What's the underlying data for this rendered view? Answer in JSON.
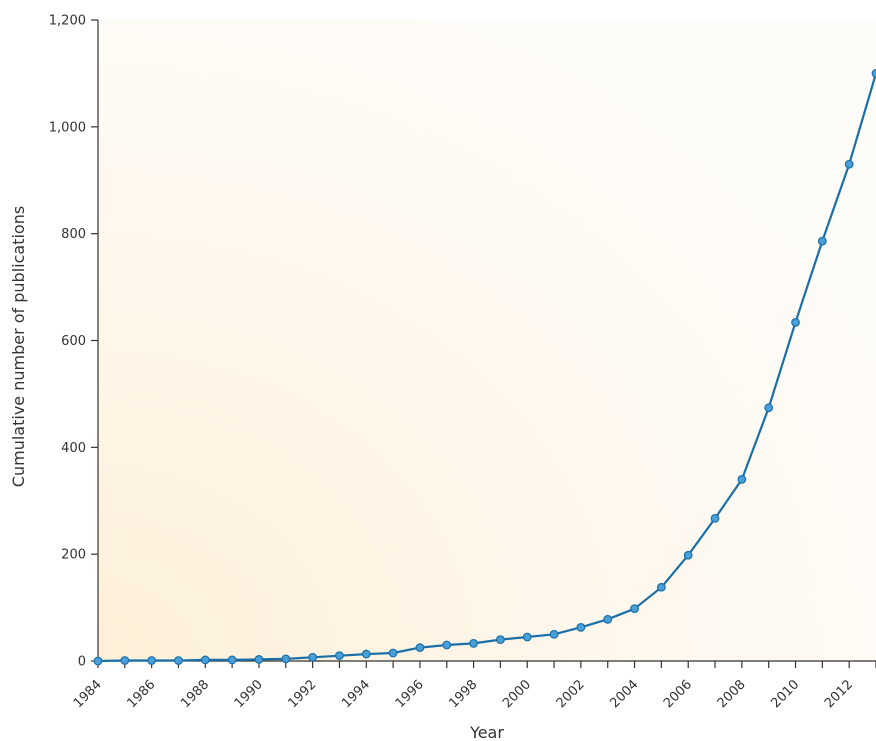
{
  "chart_data": {
    "type": "line",
    "title": "",
    "xlabel": "Year",
    "ylabel": "Cumulative number of publications",
    "xlim": [
      1984,
      2013
    ],
    "ylim": [
      0,
      1200
    ],
    "y_ticks": [
      {
        "value": 0,
        "label": "0"
      },
      {
        "value": 200,
        "label": "200"
      },
      {
        "value": 400,
        "label": "400"
      },
      {
        "value": 600,
        "label": "600"
      },
      {
        "value": 800,
        "label": "800"
      },
      {
        "value": 1000,
        "label": "1,000"
      },
      {
        "value": 1200,
        "label": "1,200"
      }
    ],
    "x_ticks": [
      {
        "value": 1984,
        "label": "1984"
      },
      {
        "value": 1986,
        "label": "1986"
      },
      {
        "value": 1988,
        "label": "1988"
      },
      {
        "value": 1990,
        "label": "1990"
      },
      {
        "value": 1992,
        "label": "1992"
      },
      {
        "value": 1994,
        "label": "1994"
      },
      {
        "value": 1996,
        "label": "1996"
      },
      {
        "value": 1998,
        "label": "1998"
      },
      {
        "value": 2000,
        "label": "2000"
      },
      {
        "value": 2002,
        "label": "2002"
      },
      {
        "value": 2004,
        "label": "2004"
      },
      {
        "value": 2006,
        "label": "2006"
      },
      {
        "value": 2008,
        "label": "2008"
      },
      {
        "value": 2010,
        "label": "2010"
      },
      {
        "value": 2012,
        "label": "2012"
      }
    ],
    "grid": false,
    "colors": {
      "line": "#1a6fa8",
      "marker_fill": "#4a9fd8",
      "marker_stroke": "#1a6fa8",
      "background_tint": "#fdf0d8",
      "axis": "#333333"
    },
    "series": [
      {
        "x": [
          1984,
          1985,
          1986,
          1987,
          1988,
          1989,
          1990,
          1991,
          1992,
          1993,
          1994,
          1995,
          1996,
          1997,
          1998,
          1999,
          2000,
          2001,
          2002,
          2003,
          2004,
          2005,
          2006,
          2007,
          2008,
          2009,
          2010,
          2011,
          2012,
          2013
        ],
        "y": [
          0,
          1,
          1,
          1,
          2,
          2,
          3,
          4,
          7,
          10,
          13,
          15,
          25,
          30,
          33,
          40,
          45,
          50,
          63,
          78,
          98,
          138,
          198,
          267,
          340,
          474,
          634,
          786,
          930,
          1100
        ]
      }
    ]
  }
}
